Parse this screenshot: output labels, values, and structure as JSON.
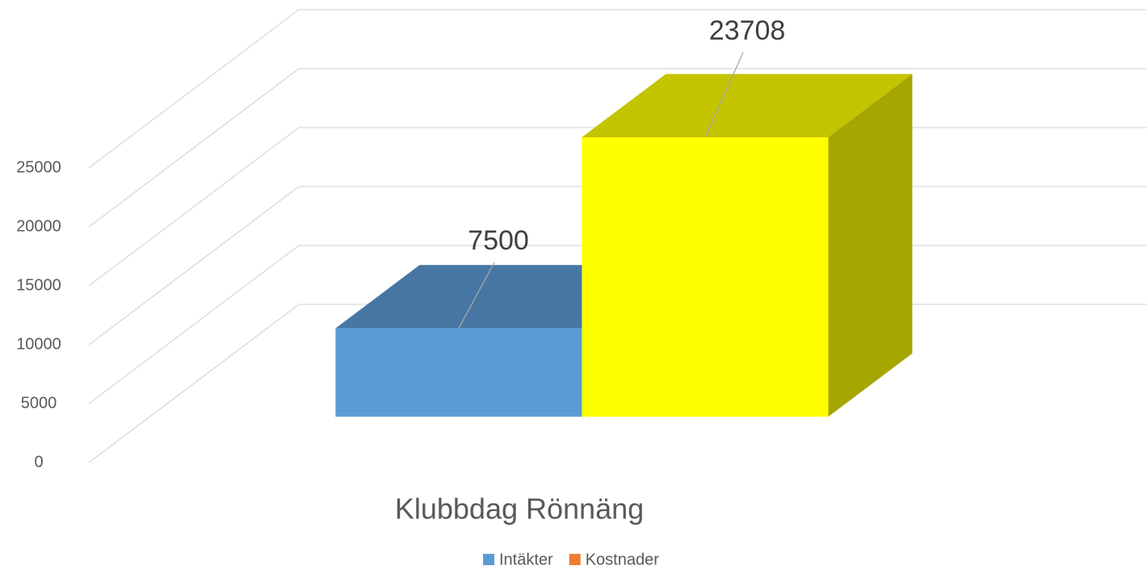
{
  "chart_data": {
    "type": "bar3d",
    "categories": [
      "Klubbdag Rönnäng"
    ],
    "series": [
      {
        "name": "Intäkter",
        "color": "#5b9bd5",
        "legend_color": "#5b9bd5",
        "values": [
          7500
        ]
      },
      {
        "name": "Kostnader",
        "color": "#ffff00",
        "legend_color": "#ed7d31",
        "values": [
          23708
        ]
      }
    ],
    "ylim": [
      0,
      25000
    ],
    "yticks": [
      0,
      5000,
      10000,
      15000,
      20000,
      25000
    ],
    "grid": true
  }
}
